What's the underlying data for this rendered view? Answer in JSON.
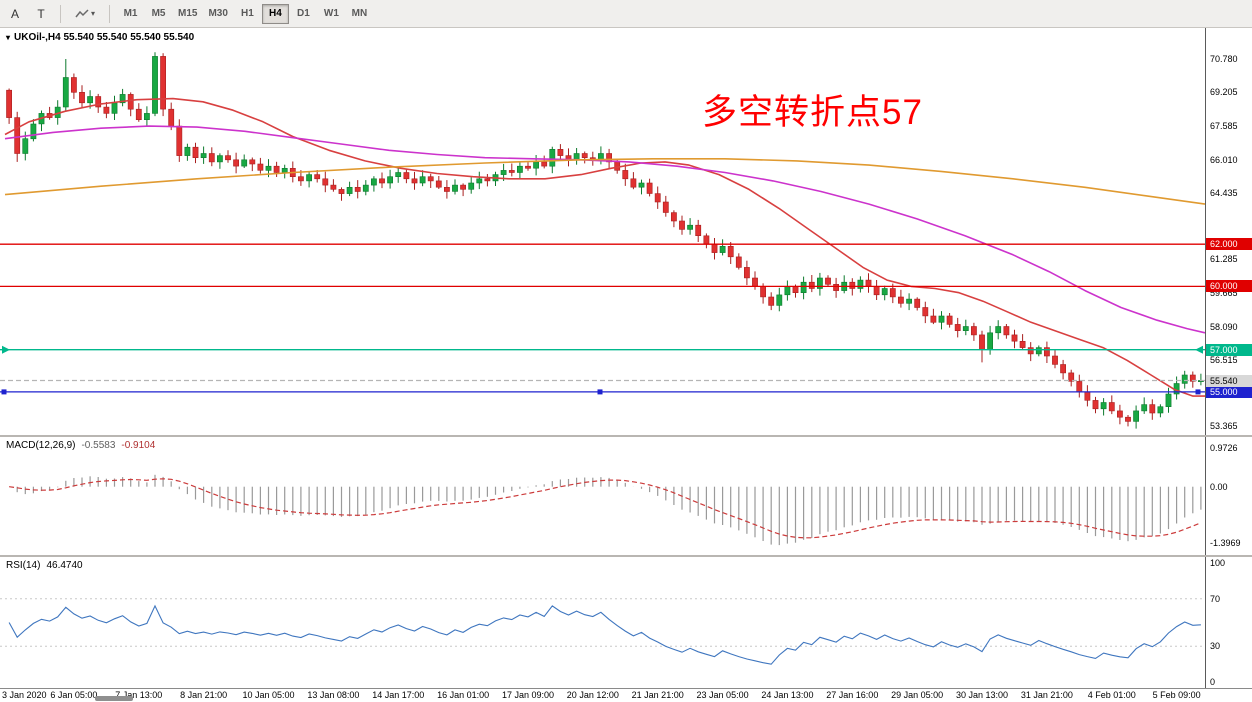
{
  "toolbar": {
    "tool_a": "A",
    "tool_t": "T",
    "timeframes": [
      {
        "label": "M1",
        "active": false
      },
      {
        "label": "M5",
        "active": false
      },
      {
        "label": "M15",
        "active": false
      },
      {
        "label": "M30",
        "active": false
      },
      {
        "label": "H1",
        "active": false
      },
      {
        "label": "H4",
        "active": true
      },
      {
        "label": "D1",
        "active": false
      },
      {
        "label": "W1",
        "active": false
      },
      {
        "label": "MN",
        "active": false
      }
    ]
  },
  "main": {
    "title": "UKOil-,H4 55.540 55.540 55.540 55.540",
    "annotation": {
      "text": "多空转折点57",
      "color": "#ff0000"
    },
    "axis_ticks": [
      {
        "label": "70.780",
        "price": 70.78
      },
      {
        "label": "69.205",
        "price": 69.205
      },
      {
        "label": "67.585",
        "price": 67.585
      },
      {
        "label": "66.010",
        "price": 66.01
      },
      {
        "label": "64.435",
        "price": 64.435
      },
      {
        "label": "61.285",
        "price": 61.285
      },
      {
        "label": "59.665",
        "price": 59.665
      },
      {
        "label": "58.090",
        "price": 58.09
      },
      {
        "label": "56.515",
        "price": 56.515
      },
      {
        "label": "53.365",
        "price": 53.365
      }
    ],
    "hlines": [
      {
        "price": 62.0,
        "label": "62.000",
        "color": "#e00000",
        "type": "line"
      },
      {
        "price": 60.0,
        "label": "60.000",
        "color": "#e00000",
        "type": "line"
      },
      {
        "price": 57.0,
        "label": "57.000",
        "color": "#00b88c",
        "type": "arrows"
      },
      {
        "price": 55.0,
        "label": "55.000",
        "color": "#1e22cf",
        "type": "squares"
      },
      {
        "price": 55.54,
        "label": "55.540",
        "color": "#b5b5b5",
        "type": "bid",
        "dashed": true,
        "badge_bg": "#d8d8d8",
        "badge_fg": "#000000"
      }
    ]
  },
  "chart_data": {
    "type": "candlestick",
    "symbol": "UKOil-",
    "timeframe": "H4",
    "bull_color": "#18a843",
    "bull_stroke": "#0d7a2e",
    "bear_color": "#e03131",
    "bear_stroke": "#a81f1f",
    "price_axis": {
      "min": 53.1,
      "max": 71.3
    },
    "first_open": 69.3,
    "closes": [
      68.0,
      66.3,
      67.0,
      67.7,
      68.2,
      68.0,
      68.5,
      69.9,
      69.2,
      68.7,
      69.0,
      68.5,
      68.2,
      68.7,
      69.1,
      68.4,
      67.9,
      68.2,
      70.9,
      68.4,
      67.6,
      66.2,
      66.6,
      66.1,
      66.3,
      65.9,
      66.2,
      66.0,
      65.7,
      66.0,
      65.8,
      65.5,
      65.7,
      65.4,
      65.6,
      65.2,
      65.0,
      65.3,
      65.1,
      64.8,
      64.6,
      64.4,
      64.7,
      64.5,
      64.8,
      65.1,
      64.9,
      65.2,
      65.4,
      65.1,
      64.9,
      65.2,
      65.0,
      64.7,
      64.5,
      64.8,
      64.6,
      64.9,
      65.1,
      65.0,
      65.3,
      65.5,
      65.4,
      65.7,
      65.6,
      65.9,
      65.7,
      66.5,
      66.2,
      66.0,
      66.3,
      66.1,
      66.0,
      66.3,
      65.9,
      65.5,
      65.1,
      64.7,
      64.9,
      64.4,
      64.0,
      63.5,
      63.1,
      62.7,
      62.9,
      62.4,
      62.0,
      61.6,
      61.9,
      61.4,
      60.9,
      60.4,
      60.0,
      59.5,
      59.1,
      59.6,
      60.0,
      59.7,
      60.2,
      59.9,
      60.4,
      60.1,
      59.8,
      60.2,
      59.9,
      60.3,
      60.0,
      59.6,
      59.9,
      59.5,
      59.2,
      59.4,
      59.0,
      58.6,
      58.3,
      58.6,
      58.2,
      57.9,
      58.1,
      57.7,
      57.0,
      57.8,
      58.1,
      57.7,
      57.4,
      57.1,
      56.8,
      57.1,
      56.7,
      56.3,
      55.9,
      55.5,
      55.0,
      54.6,
      54.2,
      54.5,
      54.1,
      53.8,
      53.6,
      54.1,
      54.4,
      54.0,
      54.3,
      54.9,
      55.4,
      55.8,
      55.5,
      55.54
    ],
    "high_overrides": {
      "7": 70.78,
      "18": 71.1
    },
    "low_overrides": {
      "1": 65.9,
      "120": 56.4,
      "138": 53.365
    },
    "ma_lines": [
      {
        "name": "ma-fast-red",
        "color": "#d84040",
        "points": [
          [
            0.0,
            67.2
          ],
          [
            0.02,
            67.8
          ],
          [
            0.05,
            68.3
          ],
          [
            0.08,
            68.65
          ],
          [
            0.11,
            68.85
          ],
          [
            0.14,
            68.9
          ],
          [
            0.165,
            68.75
          ],
          [
            0.19,
            68.35
          ],
          [
            0.215,
            67.8
          ],
          [
            0.24,
            67.1
          ],
          [
            0.27,
            66.45
          ],
          [
            0.3,
            65.95
          ],
          [
            0.33,
            65.6
          ],
          [
            0.36,
            65.35
          ],
          [
            0.39,
            65.2
          ],
          [
            0.42,
            65.1
          ],
          [
            0.45,
            65.1
          ],
          [
            0.48,
            65.3
          ],
          [
            0.505,
            65.6
          ],
          [
            0.53,
            65.85
          ],
          [
            0.55,
            65.9
          ],
          [
            0.57,
            65.75
          ],
          [
            0.595,
            65.3
          ],
          [
            0.62,
            64.6
          ],
          [
            0.645,
            63.7
          ],
          [
            0.67,
            62.7
          ],
          [
            0.695,
            61.7
          ],
          [
            0.715,
            60.9
          ],
          [
            0.735,
            60.3
          ],
          [
            0.755,
            60.0
          ],
          [
            0.775,
            59.9
          ],
          [
            0.795,
            59.7
          ],
          [
            0.815,
            59.3
          ],
          [
            0.835,
            58.8
          ],
          [
            0.855,
            58.3
          ],
          [
            0.875,
            57.9
          ],
          [
            0.895,
            57.5
          ],
          [
            0.915,
            57.1
          ],
          [
            0.935,
            56.5
          ],
          [
            0.955,
            55.8
          ],
          [
            0.975,
            55.1
          ],
          [
            0.99,
            54.8
          ],
          [
            1.0,
            54.8
          ]
        ]
      },
      {
        "name": "ma-mid-magenta",
        "color": "#cc33cc",
        "points": [
          [
            0.0,
            67.0
          ],
          [
            0.04,
            67.3
          ],
          [
            0.08,
            67.5
          ],
          [
            0.12,
            67.6
          ],
          [
            0.16,
            67.55
          ],
          [
            0.2,
            67.35
          ],
          [
            0.24,
            67.05
          ],
          [
            0.28,
            66.75
          ],
          [
            0.32,
            66.45
          ],
          [
            0.36,
            66.25
          ],
          [
            0.4,
            66.1
          ],
          [
            0.44,
            66.05
          ],
          [
            0.48,
            66.0
          ],
          [
            0.52,
            65.9
          ],
          [
            0.56,
            65.7
          ],
          [
            0.6,
            65.4
          ],
          [
            0.64,
            65.0
          ],
          [
            0.68,
            64.5
          ],
          [
            0.72,
            63.9
          ],
          [
            0.76,
            63.2
          ],
          [
            0.8,
            62.4
          ],
          [
            0.84,
            61.5
          ],
          [
            0.87,
            60.7
          ],
          [
            0.9,
            59.8
          ],
          [
            0.93,
            59.0
          ],
          [
            0.96,
            58.4
          ],
          [
            0.985,
            58.0
          ],
          [
            1.0,
            57.8
          ]
        ]
      },
      {
        "name": "ma-slow-orange",
        "color": "#e09a30",
        "points": [
          [
            0.0,
            64.35
          ],
          [
            0.08,
            64.75
          ],
          [
            0.16,
            65.1
          ],
          [
            0.24,
            65.4
          ],
          [
            0.32,
            65.65
          ],
          [
            0.4,
            65.85
          ],
          [
            0.48,
            66.0
          ],
          [
            0.54,
            66.05
          ],
          [
            0.6,
            66.05
          ],
          [
            0.66,
            65.95
          ],
          [
            0.72,
            65.75
          ],
          [
            0.78,
            65.45
          ],
          [
            0.84,
            65.1
          ],
          [
            0.9,
            64.7
          ],
          [
            0.95,
            64.3
          ],
          [
            1.0,
            63.9
          ]
        ]
      }
    ],
    "time_labels": [
      "3 Jan 2020",
      "6 Jan 05:00",
      "7 Jan 13:00",
      "8 Jan 21:00",
      "10 Jan 05:00",
      "13 Jan 08:00",
      "14 Jan 17:00",
      "16 Jan 01:00",
      "17 Jan 09:00",
      "20 Jan 12:00",
      "21 Jan 21:00",
      "23 Jan 05:00",
      "24 Jan 13:00",
      "27 Jan 16:00",
      "29 Jan 05:00",
      "30 Jan 13:00",
      "31 Jan 21:00",
      "4 Feb 01:00",
      "5 Feb 09:00"
    ],
    "label_every_n_bars": 8,
    "indicators": {
      "macd": {
        "title": "MACD(12,26,9)",
        "value_main": "-0.5583",
        "value_signal": "-0.9104",
        "fast": 12,
        "slow": 26,
        "signal": 9,
        "histogram_color": "#9a9a9a",
        "signal_color": "#cc3b3b",
        "axis": [
          {
            "label": "0.9726",
            "value": 0.9726
          },
          {
            "label": "0.00",
            "value": 0
          },
          {
            "label": "-1.3969",
            "value": -1.3969
          }
        ]
      },
      "rsi": {
        "title": "RSI(14)",
        "value": "46.4740",
        "period": 14,
        "line_color": "#3f76bf",
        "levels": [
          70,
          30
        ],
        "axis": [
          {
            "label": "100",
            "value": 100
          },
          {
            "label": "70",
            "value": 70
          },
          {
            "label": "30",
            "value": 30
          },
          {
            "label": "0",
            "value": 0
          }
        ]
      }
    }
  }
}
